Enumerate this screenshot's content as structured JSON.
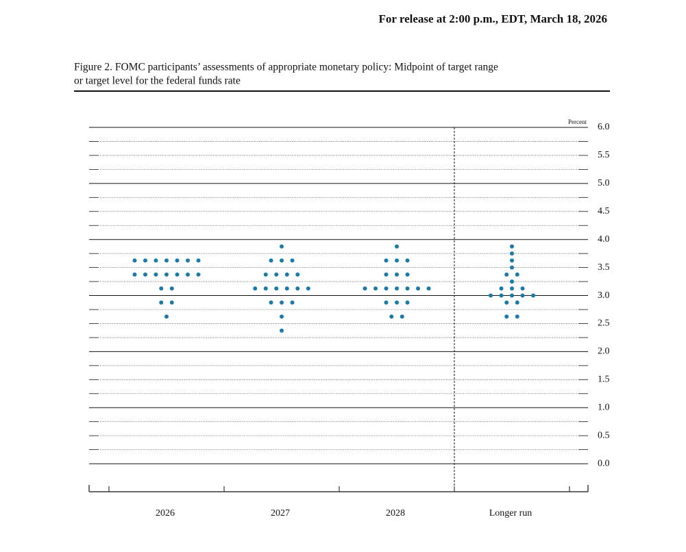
{
  "header": {
    "release": "For release at 2:00 p.m., EDT, March 18, 2026"
  },
  "chart_data": {
    "type": "dot",
    "title_lines": [
      "Figure 2. FOMC participants’ assessments of appropriate monetary policy: Midpoint of target range",
      "or target level for the federal funds rate"
    ],
    "y_label": "Percent",
    "categories": [
      "2026",
      "2027",
      "2028",
      "Longer run"
    ],
    "color": "#1a7aa8",
    "values": [
      [
        3.625,
        3.625,
        3.625,
        3.625,
        3.625,
        3.625,
        3.625,
        3.375,
        3.375,
        3.375,
        3.375,
        3.375,
        3.375,
        3.375,
        3.125,
        3.125,
        2.875,
        2.875,
        2.625
      ],
      [
        3.875,
        3.625,
        3.625,
        3.625,
        3.375,
        3.375,
        3.375,
        3.375,
        3.125,
        3.125,
        3.125,
        3.125,
        3.125,
        3.125,
        2.875,
        2.875,
        2.875,
        2.625,
        2.375
      ],
      [
        3.875,
        3.625,
        3.625,
        3.625,
        3.375,
        3.375,
        3.375,
        3.125,
        3.125,
        3.125,
        3.125,
        3.125,
        3.125,
        3.125,
        2.875,
        2.875,
        2.875,
        2.625,
        2.625
      ],
      [
        3.875,
        3.75,
        3.625,
        3.5,
        3.375,
        3.375,
        3.25,
        3.125,
        3.125,
        3.125,
        3.0,
        3.0,
        3.0,
        3.0,
        3.0,
        2.875,
        2.875,
        2.625,
        2.625
      ]
    ],
    "ylim": [
      -0.5,
      6
    ],
    "yticks": [
      {
        "value": 0,
        "label": "0.0"
      },
      0.5,
      {
        "value": 1,
        "label": "1.0"
      },
      1.5,
      {
        "value": 2,
        "label": "2.0"
      },
      2.5,
      {
        "value": 3,
        "label": "3.0"
      },
      3.5,
      {
        "value": 4,
        "label": "4.0"
      },
      4.5,
      {
        "value": 5,
        "label": "5.0"
      },
      5.5,
      {
        "value": 6,
        "label": "6.0"
      }
    ],
    "minor_yticks": [
      0.25,
      0.75,
      1.25,
      1.75,
      2.25,
      2.75,
      3.25,
      3.75,
      4.25,
      4.75,
      5.25,
      5.75
    ]
  }
}
